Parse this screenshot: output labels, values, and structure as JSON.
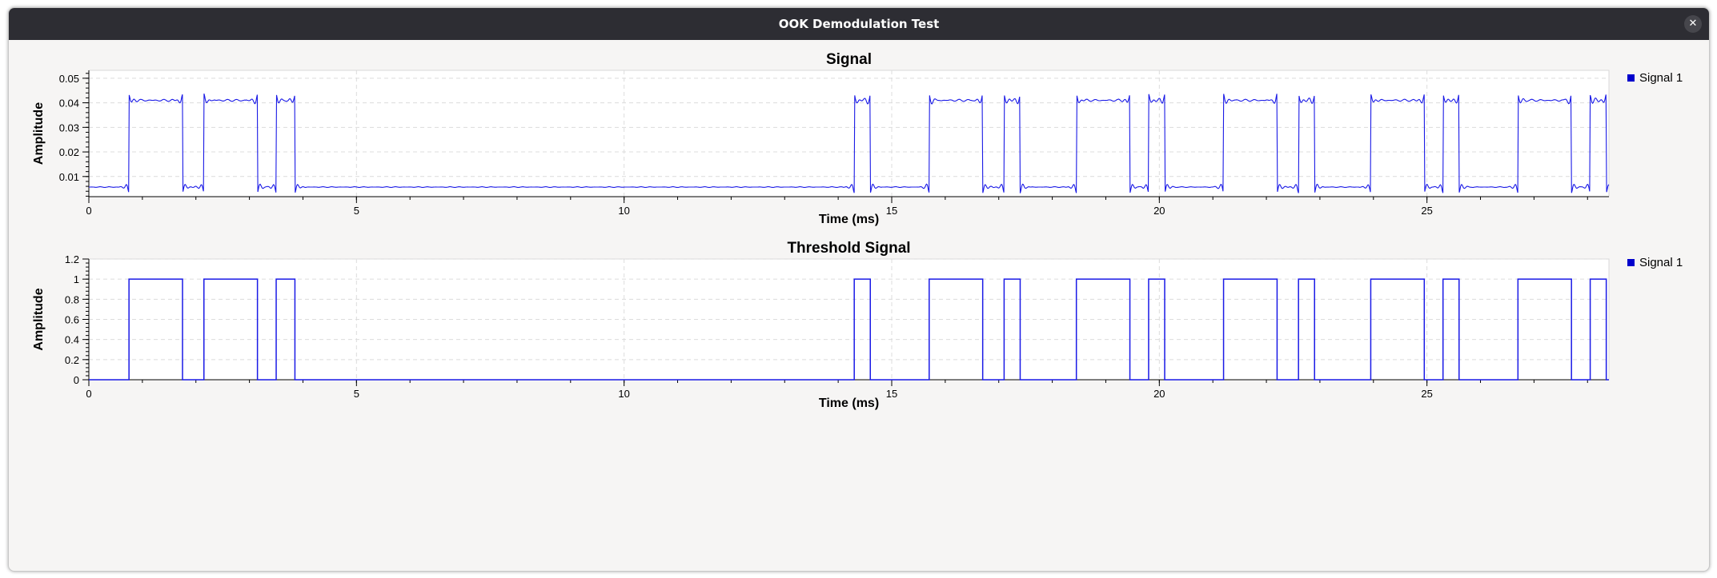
{
  "window": {
    "title": "OOK Demodulation Test",
    "close_icon": "close-icon"
  },
  "colors": {
    "series": "#1a1ae6",
    "legend_swatch": "#0000cc",
    "grid": "#dcdcdc",
    "plot_bg": "#ffffff",
    "titlebar": "#2d2d33"
  },
  "chart_data": [
    {
      "type": "line",
      "title": "Signal",
      "xlabel": "Time (ms)",
      "ylabel": "Amplitude",
      "xlim": [
        0,
        28.4
      ],
      "ylim": [
        0.0018,
        0.0532
      ],
      "x_ticks": [
        0,
        5,
        10,
        15,
        20,
        25
      ],
      "x_tick_labels": [
        "0",
        "5",
        "10",
        "15",
        "20",
        "25"
      ],
      "y_ticks": [
        0.01,
        0.02,
        0.03,
        0.04,
        0.05
      ],
      "y_tick_labels": [
        "0.01",
        "0.02",
        "0.03",
        "0.04",
        "0.05"
      ],
      "grid": true,
      "legend": {
        "placement": "right",
        "entries": [
          "Signal 1"
        ]
      },
      "series": [
        {
          "name": "Signal 1",
          "low": 0.0057,
          "high": 0.041,
          "pulses": [
            [
              0.75,
              1.75
            ],
            [
              2.15,
              3.15
            ],
            [
              3.5,
              3.85
            ],
            [
              14.3,
              14.6
            ],
            [
              15.7,
              16.7
            ],
            [
              17.1,
              17.4
            ],
            [
              18.45,
              19.45
            ],
            [
              19.8,
              20.1
            ],
            [
              21.2,
              22.2
            ],
            [
              22.6,
              22.9
            ],
            [
              23.95,
              24.95
            ],
            [
              25.3,
              25.6
            ],
            [
              26.7,
              27.7
            ],
            [
              28.05,
              28.35
            ]
          ]
        }
      ]
    },
    {
      "type": "line",
      "title": "Threshold Signal",
      "xlabel": "Time (ms)",
      "ylabel": "Amplitude",
      "xlim": [
        0,
        28.4
      ],
      "ylim": [
        0,
        1.2
      ],
      "x_ticks": [
        0,
        5,
        10,
        15,
        20,
        25
      ],
      "x_tick_labels": [
        "0",
        "5",
        "10",
        "15",
        "20",
        "25"
      ],
      "y_ticks": [
        0,
        0.2,
        0.4,
        0.6,
        0.8,
        1,
        1.2
      ],
      "y_tick_labels": [
        "0",
        "0.2",
        "0.4",
        "0.6",
        "0.8",
        "1",
        "1.2"
      ],
      "grid": true,
      "legend": {
        "placement": "right",
        "entries": [
          "Signal 1"
        ]
      },
      "series": [
        {
          "name": "Signal 1",
          "low": 0,
          "high": 1,
          "pulses": [
            [
              0.75,
              1.75
            ],
            [
              2.15,
              3.15
            ],
            [
              3.5,
              3.85
            ],
            [
              14.3,
              14.6
            ],
            [
              15.7,
              16.7
            ],
            [
              17.1,
              17.4
            ],
            [
              18.45,
              19.45
            ],
            [
              19.8,
              20.1
            ],
            [
              21.2,
              22.2
            ],
            [
              22.6,
              22.9
            ],
            [
              23.95,
              24.95
            ],
            [
              25.3,
              25.6
            ],
            [
              26.7,
              27.7
            ],
            [
              28.05,
              28.35
            ]
          ]
        }
      ]
    }
  ]
}
